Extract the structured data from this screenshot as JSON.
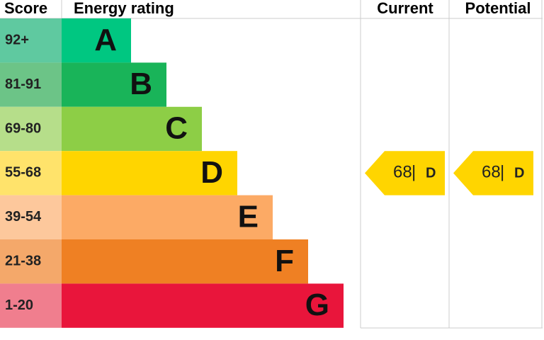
{
  "header": {
    "score": "Score",
    "rating": "Energy rating",
    "current": "Current",
    "potential": "Potential"
  },
  "bands": [
    {
      "score": "92+",
      "letter": "A",
      "color": "#00c781",
      "score_color": "#5fc9a0"
    },
    {
      "score": "81-91",
      "letter": "B",
      "color": "#19b459",
      "score_color": "#6cc487"
    },
    {
      "score": "69-80",
      "letter": "C",
      "color": "#8dce46",
      "score_color": "#b6de8a"
    },
    {
      "score": "55-68",
      "letter": "D",
      "color": "#ffd500",
      "score_color": "#ffe36b"
    },
    {
      "score": "39-54",
      "letter": "E",
      "color": "#fcaa65",
      "score_color": "#fdc89c"
    },
    {
      "score": "21-38",
      "letter": "F",
      "color": "#ef8023",
      "score_color": "#f4a86a"
    },
    {
      "score": "1-20",
      "letter": "G",
      "color": "#e9153b",
      "score_color": "#f07e8e"
    }
  ],
  "current": {
    "value": 68,
    "separator": "|",
    "band": "D"
  },
  "potential": {
    "value": 68,
    "separator": "|",
    "band": "D"
  }
}
